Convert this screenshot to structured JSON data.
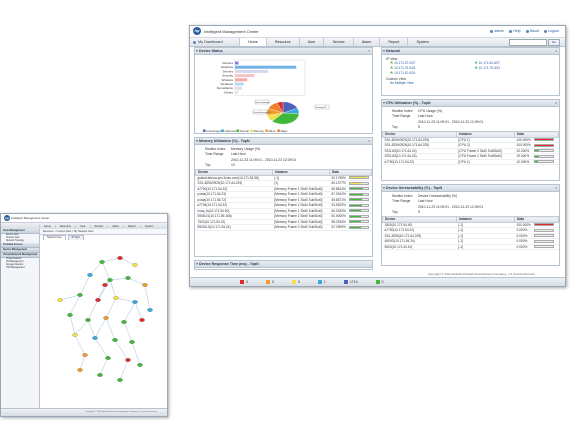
{
  "app": {
    "title": "Intelligent Management Center"
  },
  "header": {
    "links": [
      {
        "label": "admin",
        "icon": "user-icon"
      },
      {
        "label": "Help",
        "icon": "help-icon"
      },
      {
        "label": "About",
        "icon": "info-icon"
      },
      {
        "label": "Logout",
        "icon": "logout-icon"
      }
    ],
    "go_label": "Go"
  },
  "nav": {
    "dashboard_label": "My Dashboard",
    "tabs": [
      "Home",
      "Resource",
      "User",
      "Service",
      "Alarm",
      "Report",
      "System"
    ],
    "active_tab": "Home"
  },
  "panels": {
    "device_status": {
      "title": "Device Status",
      "chart_data": {
        "type": "bar",
        "orientation": "horizontal",
        "categories": [
          "Routers",
          "Switches",
          "Servers",
          "Security",
          "Wireless",
          "Desktops",
          "Surveillance",
          "Others"
        ],
        "values": [
          4,
          70,
          38,
          22,
          14,
          10,
          8,
          4
        ],
        "colors": [
          "#7f7fe0",
          "#6fb3e6",
          "#d7d7ef",
          "#f3c4c4",
          "#f7a9a9",
          "#b5d9ee",
          "#d8dcef",
          "#e6e6e6"
        ]
      },
      "pie_data": {
        "type": "pie",
        "slices": [
          {
            "label": "Unmanaged",
            "value": 18,
            "color": "#4b62b8"
          },
          {
            "label": "Unknown",
            "value": 8,
            "color": "#3aa9e0"
          },
          {
            "label": "Normal",
            "value": 36,
            "color": "#40b83c"
          },
          {
            "label": "Warning",
            "value": 10,
            "color": "#f4e24a"
          },
          {
            "label": "Minor",
            "value": 10,
            "color": "#f29a2e"
          },
          {
            "label": "Major",
            "value": 12,
            "color": "#ee7f2b"
          },
          {
            "label": "Critical",
            "value": 6,
            "color": "#e02b2b"
          }
        ]
      },
      "callouts": [
        "Router Unmanaged",
        "Router(Unmanaged) 10",
        "Unmanaged 11"
      ],
      "legend": [
        "Unmanaged",
        "Unknown",
        "Normal",
        "Warning",
        "Minor",
        "Major",
        "Critical"
      ]
    },
    "memory": {
      "title": "Memory Utilization (%) - TopN",
      "fields": [
        {
          "k": "Monitor Index",
          "v": "Memory Usage (%)"
        },
        {
          "k": "Time Range",
          "v": "Last Hour"
        },
        {
          "k": "",
          "v": "2010-11-23 11:09:01 - 2010-11-23 12:09:01"
        },
        {
          "k": "Top",
          "v": "10"
        }
      ],
      "columns": [
        "Device",
        "Instance",
        "Data"
      ],
      "rows": [
        {
          "device": "gssbid-fedora-pro.3com.com(10.171.54.56)",
          "instance": "[-1]",
          "data": "92.1799%",
          "pct": 92,
          "color": "#f4e24a"
        },
        {
          "device": "SSL-8250/0925(10.171.64.225)",
          "instance": "[1]",
          "data": "60.1577%",
          "pct": 60,
          "color": "#f4e24a"
        },
        {
          "device": "a7750(10.171.54.22)",
          "instance": "[Memory Frame 1 Slot0 SubSlot0]",
          "data": "69.8814%",
          "pct": 70,
          "color": "#40b83c"
        },
        {
          "device": "posta(10.171.54.23)",
          "instance": "[Memory Frame 1 Slot0 SubSlot0]",
          "data": "67.0914%",
          "pct": 67,
          "color": "#40b83c"
        },
        {
          "device": "posta(10.171.56.72)",
          "instance": "[Memory Frame 1 Slot0 SubSlot0]",
          "data": "65.8571%",
          "pct": 66,
          "color": "#40b83c"
        },
        {
          "device": "a7754(10.171.54.22)",
          "instance": "[Memory Frame 2 Slot4 SubSlot0]",
          "data": "63.5523%",
          "pct": 64,
          "color": "#40b83c"
        },
        {
          "device": "nuac_fs(10.171.54.50)",
          "instance": "[Memory Frame 1 Slot0 SubSlot0]",
          "data": "60.3333%",
          "pct": 60,
          "color": "#40b83c"
        },
        {
          "device": "5508-01(10.171.56.166)",
          "instance": "[Memory Frame 2 Slot0 SubSlot0]",
          "data": "60.0000%",
          "pct": 60,
          "color": "#40b83c"
        },
        {
          "device": "7502(10.171.54.22)",
          "instance": "[Memory Frame 1 Slot0 SubSlot0]",
          "data": "58.3333%",
          "pct": 58,
          "color": "#40b83c"
        },
        {
          "device": "5500G-6(10.171.54.24)",
          "instance": "[Memory Frame 2 Slot0 SubSlot0]",
          "data": "57.2900%",
          "pct": 57,
          "color": "#40b83c"
        }
      ]
    },
    "response": {
      "title": "Device Response Time (ms) - TopN"
    },
    "network": {
      "title": "Network",
      "ip_view_label": "IP View",
      "ips": [
        "10.171.57.0/27",
        "10.171.54.0/27",
        "10.171.75.0/24",
        "10.171.76.0/24",
        "10.171.10.0/24"
      ],
      "custom_view_label": "Custom View",
      "custom_views": [
        "No Multiple View"
      ]
    },
    "cpu": {
      "title": "CPU Utilization (%) - TopN",
      "fields": [
        {
          "k": "Monitor Index",
          "v": "CPU Usage (%)"
        },
        {
          "k": "Time Range",
          "v": "Last Hour"
        },
        {
          "k": "",
          "v": "2010-11-23 11:09:01 - 2010-11-23 12:09:01"
        },
        {
          "k": "Top",
          "v": "5"
        }
      ],
      "columns": [
        "Device",
        "Instance",
        "Data"
      ],
      "rows": [
        {
          "device": "SSL-8250/0925(10.171.64.225)",
          "instance": "[CPU 1]",
          "data": "100.000%",
          "pct": 100,
          "color": "#e02b2b"
        },
        {
          "device": "SSL-8250/0925(10.171.64.225)",
          "instance": "[CPU 2]",
          "data": "100.000%",
          "pct": 100,
          "color": "#e02b2b"
        },
        {
          "device": "SSG-65(10.171.64.24)",
          "instance": "[CPU Frame 2 Slot0 SubSlot0]",
          "data": "20.000%",
          "pct": 20,
          "color": "#40b83c"
        },
        {
          "device": "SSG-65(10.171.64.24)",
          "instance": "[CPU Frame 1 Slot0 SubSlot0]",
          "data": "19.000%",
          "pct": 19,
          "color": "#40b83c"
        },
        {
          "device": "a7750(10.171.54.22)",
          "instance": "[CPU 1]",
          "data": "12.000%",
          "pct": 12,
          "color": "#40b83c"
        }
      ]
    },
    "unreach": {
      "title": "Device Unreachability (%) - TopN",
      "fields": [
        {
          "k": "Monitor Index",
          "v": "Device Unreachability (%)"
        },
        {
          "k": "Time Range",
          "v": "Last Hour"
        },
        {
          "k": "",
          "v": "2010-11-23 11:09:01 - 2010-11-23 12:09:01"
        },
        {
          "k": "Top",
          "v": "5"
        }
      ],
      "columns": [
        "Device",
        "Instance",
        "Data"
      ],
      "rows": [
        {
          "device": "1800(10.171.54.40)",
          "instance": "[-1]",
          "data": "100.000%",
          "pct": 100,
          "color": "#e02b2b"
        },
        {
          "device": "a7750(10.171.54.22)",
          "instance": "[-1]",
          "data": "0.000%",
          "pct": 0,
          "color": "#40b83c"
        },
        {
          "device": "SSL-8250(10.171.64.225)",
          "instance": "[-1]",
          "data": "0.000%",
          "pct": 0,
          "color": "#40b83c"
        },
        {
          "device": "4500G(10.171.54.24)",
          "instance": "[-1]",
          "data": "0.000%",
          "pct": 0,
          "color": "#40b83c"
        },
        {
          "device": "5500(10.171.54.10)",
          "instance": "[-1]",
          "data": "0.000%",
          "pct": 0,
          "color": "#40b83c"
        }
      ]
    }
  },
  "statusbar": [
    {
      "label": "0",
      "color": "#e02b2b",
      "icon": "critical-alarm-icon"
    },
    {
      "label": "0",
      "color": "#f29a2e",
      "icon": "major-alarm-icon"
    },
    {
      "label": "0",
      "color": "#f4e24a",
      "icon": "minor-alarm-icon"
    },
    {
      "label": "1",
      "color": "#3aa9e0",
      "icon": "warning-alarm-icon"
    },
    {
      "label": "1719",
      "color": "#4b62b8",
      "icon": "event-icon"
    },
    {
      "label": "0",
      "color": "#40b83c",
      "icon": "info-alarm-icon"
    }
  ],
  "copyright": "Copyright © 2010 Hewlett-Packard Development Company, L.P. and its licensors",
  "back_window": {
    "title": "Intelligent Management Center",
    "nav_tabs": [
      "Home",
      "Resource",
      "User",
      "Service",
      "Alarm",
      "Report",
      "System"
    ],
    "sidebar": [
      {
        "section": "View Management",
        "items": [
          "Device View",
          "Custom View",
          "Network Topology"
        ]
      },
      {
        "section": "Terminal Access",
        "items": []
      },
      {
        "section": "Device Management",
        "items": []
      },
      {
        "section": "Virtual Network Management",
        "items": [
          "Virtual Network",
          "VM Management",
          "Storage Network",
          "VSP Management"
        ]
      }
    ],
    "breadcrumb": "Resource > Custom View > My Network View",
    "map_tabs": [
      "Network View",
      "IP View"
    ],
    "copyright": "Copyright © 2010 Hewlett-Packard Development Company, L.P. and its licensors"
  }
}
